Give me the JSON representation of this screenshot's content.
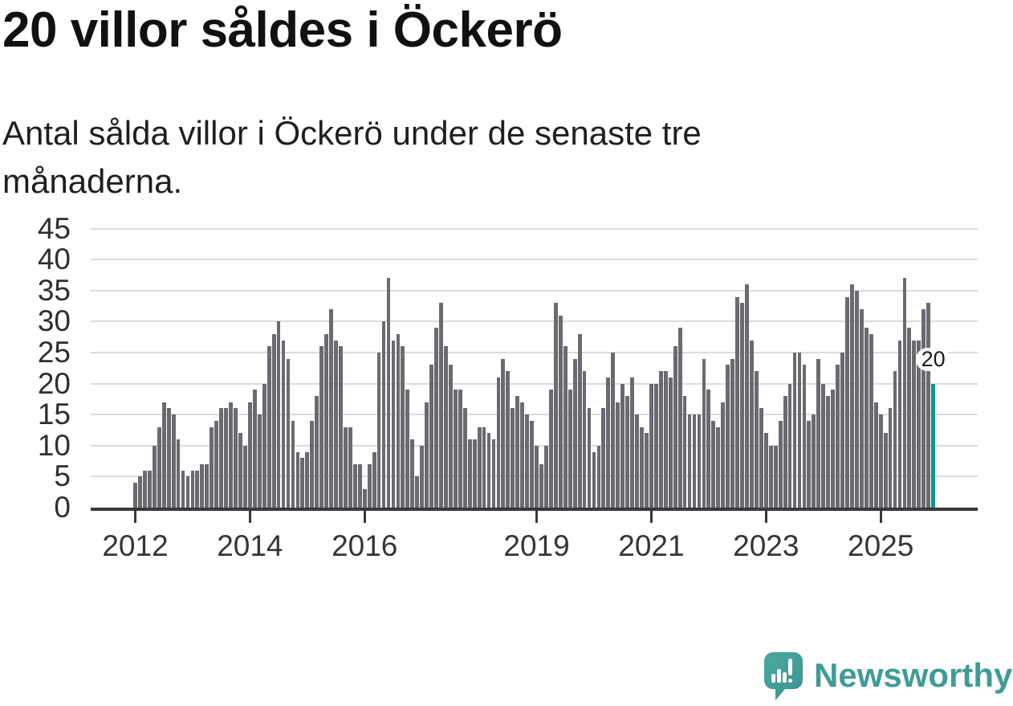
{
  "header": {
    "title": "20 villor såldes i Öckerö",
    "subtitle": "Antal sålda villor i Öckerö under de senaste tre månaderna."
  },
  "chart_data": {
    "type": "bar",
    "title": "20 villor såldes i Öckerö",
    "x_start": "2012-01",
    "x_end": "2025-12",
    "frequency": "monthly-rolling-3-month-sum",
    "values": [
      4,
      5,
      6,
      6,
      10,
      13,
      17,
      16,
      15,
      11,
      6,
      5,
      6,
      6,
      7,
      7,
      13,
      14,
      16,
      16,
      17,
      16,
      12,
      10,
      17,
      19,
      15,
      20,
      26,
      28,
      30,
      27,
      24,
      14,
      9,
      8,
      9,
      14,
      18,
      26,
      28,
      32,
      27,
      26,
      13,
      13,
      7,
      7,
      3,
      7,
      9,
      25,
      30,
      37,
      27,
      28,
      26,
      19,
      11,
      5,
      10,
      17,
      23,
      29,
      33,
      26,
      23,
      19,
      19,
      16,
      11,
      11,
      13,
      13,
      12,
      11,
      21,
      24,
      22,
      16,
      18,
      17,
      15,
      14,
      10,
      7,
      10,
      19,
      33,
      31,
      26,
      19,
      24,
      28,
      22,
      16,
      9,
      10,
      16,
      21,
      25,
      17,
      20,
      18,
      21,
      15,
      13,
      12,
      20,
      20,
      22,
      22,
      21,
      26,
      29,
      18,
      15,
      15,
      15,
      24,
      19,
      14,
      13,
      17,
      23,
      24,
      34,
      33,
      36,
      27,
      22,
      16,
      12,
      10,
      10,
      14,
      18,
      20,
      25,
      25,
      23,
      14,
      15,
      24,
      20,
      18,
      19,
      23,
      25,
      34,
      36,
      35,
      32,
      29,
      28,
      17,
      15,
      12,
      16,
      22,
      27,
      37,
      29,
      27,
      27,
      32,
      33,
      20
    ],
    "ylim": [
      0,
      45
    ],
    "y_ticks": [
      0,
      5,
      10,
      15,
      20,
      25,
      30,
      35,
      40,
      45
    ],
    "x_ticks": [
      {
        "label": "2012",
        "index": 0
      },
      {
        "label": "2014",
        "index": 24
      },
      {
        "label": "2016",
        "index": 48
      },
      {
        "label": "2019",
        "index": 84
      },
      {
        "label": "2021",
        "index": 108
      },
      {
        "label": "2023",
        "index": 132
      },
      {
        "label": "2025",
        "index": 156
      }
    ],
    "grid": "horizontal",
    "legend": "none",
    "bar_color": "#6a6a71",
    "highlight_color": "#009a8f",
    "highlight_last_bar": true,
    "annotation": {
      "text": "20",
      "background": "#ffffff",
      "color": "#1b1b1b"
    }
  },
  "footer": {
    "brand": "Newsworthy",
    "brand_color": "#3f9c95"
  }
}
